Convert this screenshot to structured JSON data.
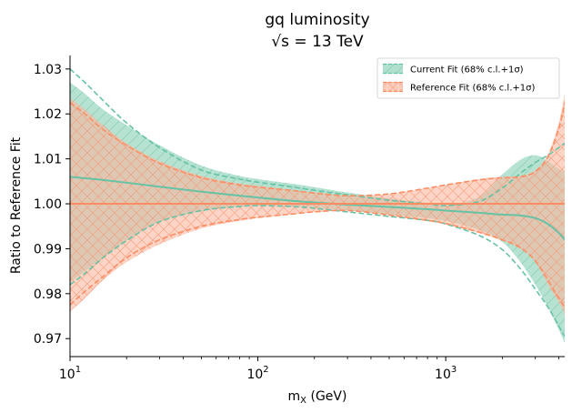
{
  "chart_data": {
    "type": "area",
    "title_line1": "gq luminosity",
    "title_line2_prefix": "√s",
    "title_line2_rest": " = 13 TeV",
    "xlabel_main": "m",
    "xlabel_sub": "X",
    "xlabel_rest": " (GeV)",
    "ylabel": "Ratio to Reference Fit",
    "xscale": "log",
    "xlim": [
      10,
      4300
    ],
    "ylim": [
      0.966,
      1.033
    ],
    "xticks": [
      {
        "value": 10,
        "base": "10",
        "exp": "1"
      },
      {
        "value": 100,
        "base": "10",
        "exp": "2"
      },
      {
        "value": 1000,
        "base": "10",
        "exp": "3"
      }
    ],
    "yticks": [
      {
        "value": 0.97,
        "label": "0.97"
      },
      {
        "value": 0.98,
        "label": "0.98"
      },
      {
        "value": 0.99,
        "label": "0.99"
      },
      {
        "value": 1.0,
        "label": "1.00"
      },
      {
        "value": 1.01,
        "label": "1.01"
      },
      {
        "value": 1.02,
        "label": "1.02"
      },
      {
        "value": 1.03,
        "label": "1.03"
      }
    ],
    "grid": false,
    "legend_position": "top-right",
    "series": [
      {
        "name": "Current Fit (68% c.l.+1σ)",
        "color": "#66c2a5",
        "fill": "#a8ddc9",
        "x": [
          10,
          12,
          15,
          20,
          30,
          50,
          80,
          100,
          150,
          200,
          300,
          500,
          800,
          1000,
          1500,
          2000,
          2500,
          3000,
          3500,
          4000,
          4300
        ],
        "upper": [
          1.027,
          1.0245,
          1.021,
          1.0175,
          1.013,
          1.0085,
          1.0062,
          1.0055,
          1.0045,
          1.0037,
          1.0025,
          1.0012,
          1.0002,
          0.9997,
          1.0015,
          1.0065,
          1.0098,
          1.0108,
          1.0095,
          1.0078,
          1.007
        ],
        "central": [
          1.006,
          1.0057,
          1.0053,
          1.0047,
          1.0038,
          1.0027,
          1.0018,
          1.0014,
          1.0007,
          1.0003,
          0.9998,
          0.9993,
          0.9988,
          0.9985,
          0.998,
          0.9976,
          0.9974,
          0.9968,
          0.9955,
          0.9935,
          0.992
        ],
        "lower": [
          0.9825,
          0.985,
          0.988,
          0.9918,
          0.996,
          0.9983,
          0.9993,
          0.9996,
          0.9994,
          0.9992,
          0.9985,
          0.9976,
          0.9968,
          0.9962,
          0.9942,
          0.9915,
          0.987,
          0.982,
          0.977,
          0.972,
          0.969
        ],
        "upper_dashed": [
          1.03,
          1.027,
          1.023,
          1.018,
          1.0125,
          1.0075,
          1.0055,
          1.0048,
          1.0038,
          1.003,
          1.002,
          1.0008,
          1.0,
          0.9996,
          1.0005,
          1.0035,
          1.0068,
          1.0092,
          1.0108,
          1.0125,
          1.0135
        ],
        "lower_dashed": [
          0.982,
          0.9845,
          0.988,
          0.9918,
          0.996,
          0.9985,
          0.9994,
          0.9996,
          0.9994,
          0.999,
          0.9982,
          0.9972,
          0.9963,
          0.9955,
          0.993,
          0.9898,
          0.9855,
          0.981,
          0.977,
          0.9728,
          0.9705
        ]
      },
      {
        "name": "Reference Fit (68% c.l.+1σ)",
        "color": "#fc8d62",
        "fill": "#fbb89f",
        "x": [
          10,
          12,
          15,
          20,
          30,
          50,
          80,
          100,
          150,
          200,
          300,
          500,
          800,
          1000,
          1500,
          2000,
          2500,
          3000,
          3500,
          4000,
          4300
        ],
        "upper": [
          1.0235,
          1.021,
          1.0175,
          1.0135,
          1.0095,
          1.0062,
          1.0045,
          1.004,
          1.0031,
          1.0025,
          1.0018,
          1.0022,
          1.0035,
          1.0042,
          1.0055,
          1.006,
          1.0062,
          1.0075,
          1.011,
          1.018,
          1.0245
        ],
        "central": [
          1.0,
          1.0,
          1.0,
          1.0,
          1.0,
          1.0,
          1.0,
          1.0,
          1.0,
          1.0,
          1.0,
          1.0,
          1.0,
          1.0,
          1.0,
          1.0,
          1.0,
          1.0,
          1.0,
          1.0,
          1.0
        ],
        "lower": [
          0.976,
          0.979,
          0.983,
          0.987,
          0.991,
          0.9945,
          0.9962,
          0.9968,
          0.9976,
          0.9981,
          0.9985,
          0.9975,
          0.9962,
          0.9955,
          0.9935,
          0.9918,
          0.99,
          0.987,
          0.982,
          0.978,
          0.9755
        ],
        "upper_dashed": [
          1.0225,
          1.02,
          1.0165,
          1.013,
          1.009,
          1.0058,
          1.0042,
          1.0037,
          1.003,
          1.0024,
          1.0018,
          1.0022,
          1.0035,
          1.0042,
          1.0053,
          1.0058,
          1.006,
          1.0072,
          1.0105,
          1.0168,
          1.0225
        ],
        "lower_dashed": [
          0.9775,
          0.9805,
          0.9838,
          0.988,
          0.992,
          0.995,
          0.9965,
          0.997,
          0.9977,
          0.9982,
          0.9985,
          0.9975,
          0.9963,
          0.9956,
          0.9937,
          0.992,
          0.9902,
          0.9873,
          0.983,
          0.979,
          0.977
        ]
      }
    ]
  }
}
